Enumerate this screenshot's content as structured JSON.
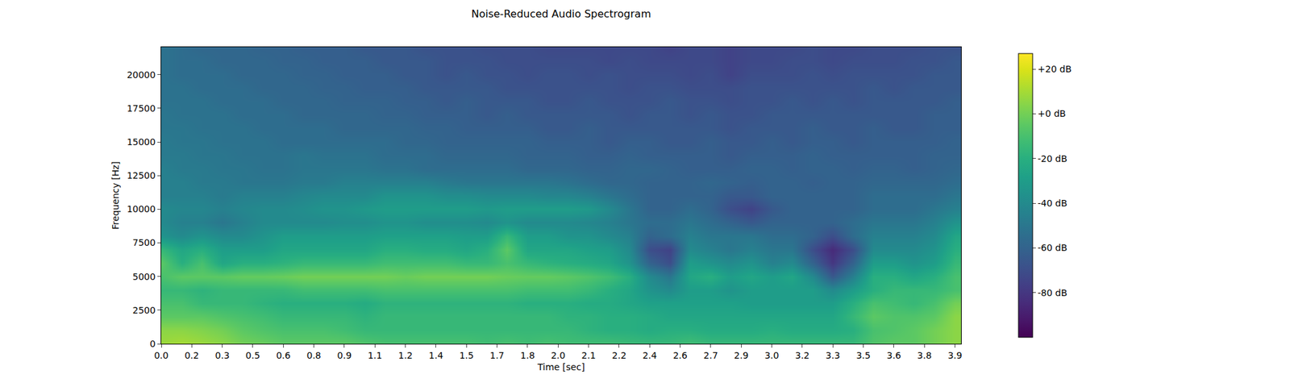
{
  "chart_data": {
    "type": "heatmap",
    "title": "Noise-Reduced Audio Spectrogram",
    "x_label": "Time [sec]",
    "y_label": "Frequency [Hz]",
    "color": "Viridis",
    "x": [
      0.0,
      0.1,
      0.2,
      0.3,
      0.4,
      0.5,
      0.6,
      0.7,
      0.8,
      0.9,
      1.0,
      1.1,
      1.2,
      1.3,
      1.4,
      1.5,
      1.6,
      1.7,
      1.8,
      1.9,
      2.0,
      2.1,
      2.2,
      2.3,
      2.4,
      2.5,
      2.6,
      2.7,
      2.8,
      2.9,
      3.0,
      3.1,
      3.2,
      3.3,
      3.4,
      3.5,
      3.6,
      3.7,
      3.8,
      3.9
    ],
    "y": [
      0,
      1000,
      2000,
      3000,
      4000,
      5000,
      6000,
      7000,
      8000,
      9000,
      10000,
      11000,
      12000,
      13000,
      14000,
      15000,
      16000,
      17000,
      18000,
      19000,
      20000,
      21000,
      22000
    ],
    "cells": [
      [
        8,
        10,
        8,
        5,
        0,
        -2,
        -5,
        -5,
        -5,
        -5,
        -8,
        -10,
        -10,
        -10,
        -10,
        -10,
        -12,
        -10,
        -12,
        -10,
        -12,
        -12,
        -12,
        -14,
        -15,
        -15,
        -12,
        -15,
        -15,
        -15,
        -15,
        -15,
        -15,
        -15,
        -15,
        -8,
        -5,
        -5,
        0,
        5
      ],
      [
        5,
        5,
        3,
        0,
        -5,
        -8,
        -10,
        -10,
        -10,
        -12,
        -15,
        -15,
        -15,
        -15,
        -15,
        -15,
        -15,
        -15,
        -15,
        -15,
        -15,
        -18,
        -20,
        -20,
        -22,
        -20,
        -20,
        -22,
        -22,
        -22,
        -20,
        -22,
        -22,
        -22,
        -20,
        -10,
        -8,
        -5,
        0,
        5
      ],
      [
        -5,
        -5,
        -5,
        -8,
        -10,
        -12,
        -15,
        -15,
        -15,
        -15,
        -18,
        -15,
        -15,
        -15,
        -15,
        -15,
        -15,
        -15,
        -15,
        -15,
        -18,
        -18,
        -20,
        -20,
        -22,
        -25,
        -25,
        -25,
        -25,
        -25,
        -25,
        -25,
        -25,
        -25,
        -15,
        -5,
        -8,
        -8,
        -5,
        5
      ],
      [
        -10,
        -10,
        -15,
        -15,
        -15,
        -18,
        -20,
        -20,
        -20,
        -20,
        -22,
        -18,
        -18,
        -18,
        -18,
        -18,
        -18,
        -18,
        -20,
        -20,
        -20,
        -22,
        -22,
        -25,
        -28,
        -28,
        -28,
        -28,
        -28,
        -30,
        -30,
        -30,
        -30,
        -30,
        -20,
        -10,
        -12,
        -15,
        -10,
        0
      ],
      [
        -15,
        -15,
        -18,
        -15,
        -15,
        -15,
        -15,
        -12,
        -12,
        -12,
        -12,
        -10,
        -10,
        -10,
        -10,
        -10,
        -10,
        -10,
        -12,
        -12,
        -12,
        -15,
        -20,
        -25,
        -35,
        -40,
        -30,
        -30,
        -35,
        -30,
        -30,
        -30,
        -30,
        -40,
        -30,
        -20,
        -15,
        -15,
        -15,
        -10
      ],
      [
        -10,
        -5,
        -5,
        -5,
        -3,
        -3,
        -2,
        0,
        0,
        0,
        0,
        0,
        -2,
        0,
        0,
        0,
        0,
        -2,
        -3,
        -3,
        -5,
        -8,
        -12,
        -20,
        -40,
        -50,
        -25,
        -20,
        -30,
        -25,
        -30,
        -25,
        -40,
        -65,
        -45,
        -20,
        -20,
        -25,
        -20,
        -10
      ],
      [
        -5,
        -20,
        -10,
        -25,
        -20,
        -20,
        -18,
        -15,
        -15,
        -15,
        -15,
        -12,
        -12,
        -12,
        -12,
        -15,
        -15,
        -10,
        -15,
        -18,
        -20,
        -22,
        -25,
        -35,
        -60,
        -70,
        -30,
        -35,
        -40,
        -35,
        -45,
        -40,
        -60,
        -80,
        -60,
        -30,
        -30,
        -35,
        -30,
        -15
      ],
      [
        -15,
        -25,
        -20,
        -30,
        -30,
        -30,
        -25,
        -25,
        -25,
        -25,
        -25,
        -20,
        -20,
        -22,
        -22,
        -25,
        -20,
        -5,
        -25,
        -25,
        -25,
        -28,
        -30,
        -40,
        -70,
        -75,
        -40,
        -45,
        -50,
        -45,
        -50,
        -50,
        -70,
        -85,
        -70,
        -40,
        -40,
        -40,
        -35,
        -20
      ],
      [
        -35,
        -40,
        -35,
        -40,
        -40,
        -35,
        -30,
        -30,
        -30,
        -30,
        -30,
        -28,
        -28,
        -28,
        -28,
        -30,
        -30,
        -15,
        -30,
        -30,
        -35,
        -35,
        -40,
        -45,
        -60,
        -55,
        -45,
        -50,
        -50,
        -50,
        -55,
        -55,
        -60,
        -70,
        -55,
        -45,
        -45,
        -45,
        -40,
        -25
      ],
      [
        -40,
        -45,
        -45,
        -50,
        -45,
        -40,
        -40,
        -40,
        -40,
        -38,
        -38,
        -35,
        -35,
        -38,
        -38,
        -38,
        -40,
        -35,
        -40,
        -40,
        -40,
        -42,
        -45,
        -50,
        -55,
        -55,
        -50,
        -55,
        -60,
        -65,
        -60,
        -60,
        -60,
        -60,
        -55,
        -50,
        -50,
        -50,
        -45,
        -35
      ],
      [
        -40,
        -42,
        -42,
        -45,
        -42,
        -40,
        -40,
        -38,
        -35,
        -35,
        -32,
        -30,
        -30,
        -30,
        -30,
        -30,
        -32,
        -30,
        -30,
        -30,
        -30,
        -32,
        -40,
        -50,
        -60,
        -60,
        -55,
        -60,
        -70,
        -75,
        -65,
        -60,
        -60,
        -60,
        -60,
        -55,
        -55,
        -55,
        -50,
        -45
      ],
      [
        -45,
        -45,
        -45,
        -48,
        -45,
        -45,
        -45,
        -42,
        -40,
        -40,
        -40,
        -35,
        -35,
        -35,
        -38,
        -38,
        -40,
        -40,
        -40,
        -42,
        -42,
        -45,
        -50,
        -55,
        -60,
        -60,
        -60,
        -60,
        -65,
        -65,
        -60,
        -60,
        -60,
        -60,
        -60,
        -55,
        -55,
        -55,
        -55,
        -50
      ],
      [
        -45,
        -45,
        -48,
        -48,
        -50,
        -50,
        -50,
        -48,
        -48,
        -45,
        -45,
        -45,
        -45,
        -45,
        -48,
        -50,
        -50,
        -50,
        -50,
        -50,
        -52,
        -55,
        -58,
        -58,
        -60,
        -60,
        -60,
        -58,
        -60,
        -62,
        -60,
        -60,
        -62,
        -60,
        -60,
        -58,
        -58,
        -58,
        -58,
        -55
      ],
      [
        -45,
        -48,
        -48,
        -50,
        -50,
        -52,
        -52,
        -50,
        -50,
        -50,
        -50,
        -52,
        -52,
        -55,
        -55,
        -55,
        -55,
        -55,
        -58,
        -58,
        -58,
        -60,
        -60,
        -58,
        -58,
        -60,
        -62,
        -62,
        -62,
        -60,
        -60,
        -62,
        -60,
        -60,
        -62,
        -60,
        -60,
        -62,
        -60,
        -58
      ],
      [
        -48,
        -48,
        -50,
        -50,
        -52,
        -52,
        -52,
        -50,
        -52,
        -52,
        -52,
        -55,
        -55,
        -55,
        -58,
        -58,
        -58,
        -58,
        -60,
        -60,
        -60,
        -62,
        -62,
        -60,
        -62,
        -62,
        -62,
        -62,
        -65,
        -62,
        -62,
        -62,
        -60,
        -62,
        -62,
        -62,
        -62,
        -62,
        -60,
        -60
      ],
      [
        -48,
        -50,
        -50,
        -52,
        -52,
        -52,
        -55,
        -55,
        -55,
        -55,
        -55,
        -55,
        -58,
        -58,
        -60,
        -60,
        -60,
        -60,
        -60,
        -62,
        -62,
        -62,
        -65,
        -62,
        -62,
        -65,
        -65,
        -62,
        -65,
        -65,
        -62,
        -65,
        -62,
        -62,
        -65,
        -62,
        -62,
        -62,
        -62,
        -60
      ],
      [
        -50,
        -50,
        -52,
        -52,
        -52,
        -55,
        -55,
        -55,
        -55,
        -58,
        -58,
        -58,
        -58,
        -60,
        -60,
        -62,
        -62,
        -62,
        -62,
        -65,
        -65,
        -62,
        -65,
        -65,
        -65,
        -65,
        -65,
        -65,
        -68,
        -65,
        -65,
        -65,
        -62,
        -65,
        -65,
        -62,
        -65,
        -65,
        -62,
        -62
      ],
      [
        -50,
        -52,
        -52,
        -52,
        -55,
        -55,
        -55,
        -58,
        -58,
        -58,
        -58,
        -60,
        -60,
        -62,
        -62,
        -62,
        -65,
        -62,
        -65,
        -65,
        -65,
        -65,
        -65,
        -68,
        -65,
        -65,
        -68,
        -65,
        -68,
        -68,
        -65,
        -65,
        -65,
        -65,
        -65,
        -65,
        -65,
        -65,
        -62,
        -62
      ],
      [
        -52,
        -52,
        -52,
        -55,
        -55,
        -55,
        -58,
        -58,
        -58,
        -60,
        -60,
        -60,
        -62,
        -62,
        -65,
        -62,
        -65,
        -65,
        -65,
        -68,
        -68,
        -65,
        -68,
        -68,
        -68,
        -65,
        -68,
        -68,
        -70,
        -68,
        -68,
        -65,
        -68,
        -65,
        -68,
        -65,
        -65,
        -65,
        -65,
        -62
      ],
      [
        -52,
        -52,
        -55,
        -55,
        -55,
        -58,
        -58,
        -58,
        -60,
        -60,
        -62,
        -62,
        -62,
        -65,
        -65,
        -65,
        -65,
        -68,
        -68,
        -68,
        -68,
        -68,
        -68,
        -70,
        -68,
        -68,
        -70,
        -70,
        -70,
        -68,
        -68,
        -68,
        -68,
        -68,
        -68,
        -65,
        -68,
        -65,
        -65,
        -65
      ],
      [
        -52,
        -55,
        -55,
        -55,
        -58,
        -58,
        -58,
        -60,
        -60,
        -62,
        -62,
        -62,
        -65,
        -65,
        -68,
        -65,
        -68,
        -68,
        -70,
        -68,
        -68,
        -70,
        -68,
        -70,
        -70,
        -70,
        -72,
        -70,
        -75,
        -70,
        -70,
        -70,
        -68,
        -70,
        -68,
        -68,
        -68,
        -68,
        -65,
        -65
      ],
      [
        -52,
        -55,
        -55,
        -58,
        -58,
        -58,
        -60,
        -60,
        -62,
        -62,
        -62,
        -65,
        -65,
        -65,
        -68,
        -68,
        -68,
        -70,
        -70,
        -70,
        -70,
        -70,
        -72,
        -70,
        -72,
        -72,
        -72,
        -72,
        -75,
        -72,
        -72,
        -70,
        -70,
        -72,
        -70,
        -70,
        -70,
        -68,
        -68,
        -65
      ],
      [
        -52,
        -55,
        -58,
        -58,
        -58,
        -60,
        -60,
        -62,
        -62,
        -62,
        -65,
        -65,
        -65,
        -68,
        -68,
        -68,
        -70,
        -70,
        -70,
        -72,
        -72,
        -72,
        -72,
        -72,
        -72,
        -75,
        -72,
        -72,
        -75,
        -72,
        -72,
        -72,
        -70,
        -72,
        -72,
        -70,
        -70,
        -70,
        -68,
        -68
      ]
    ],
    "xlim": [
      0,
      3.93
    ],
    "xticks": [
      {
        "value": 0,
        "label": "0.0"
      },
      {
        "value": 0.15,
        "label": "0.2"
      },
      {
        "value": 0.3,
        "label": "0.3"
      },
      {
        "value": 0.45,
        "label": "0.5"
      },
      {
        "value": 0.6,
        "label": "0.6"
      },
      {
        "value": 0.75,
        "label": "0.8"
      },
      {
        "value": 0.9,
        "label": "0.9"
      },
      {
        "value": 1.05,
        "label": "1.1"
      },
      {
        "value": 1.2,
        "label": "1.2"
      },
      {
        "value": 1.35,
        "label": "1.4"
      },
      {
        "value": 1.5,
        "label": "1.5"
      },
      {
        "value": 1.65,
        "label": "1.7"
      },
      {
        "value": 1.8,
        "label": "1.8"
      },
      {
        "value": 1.95,
        "label": "2.0"
      },
      {
        "value": 2.1,
        "label": "2.1"
      },
      {
        "value": 2.25,
        "label": "2.2"
      },
      {
        "value": 2.4,
        "label": "2.4"
      },
      {
        "value": 2.55,
        "label": "2.6"
      },
      {
        "value": 2.7,
        "label": "2.7"
      },
      {
        "value": 2.85,
        "label": "2.9"
      },
      {
        "value": 3.0,
        "label": "3.0"
      },
      {
        "value": 3.15,
        "label": "3.2"
      },
      {
        "value": 3.3,
        "label": "3.3"
      },
      {
        "value": 3.45,
        "label": "3.5"
      },
      {
        "value": 3.6,
        "label": "3.6"
      },
      {
        "value": 3.75,
        "label": "3.8"
      },
      {
        "value": 3.9,
        "label": "3.9"
      }
    ],
    "ylim": [
      0,
      22050
    ],
    "yticks": [
      0,
      2500,
      5000,
      7500,
      10000,
      12500,
      15000,
      17500,
      20000
    ],
    "colorbar": {
      "range": [
        -100,
        27
      ],
      "ticks": [
        {
          "value": 20,
          "label": "+20 dB"
        },
        {
          "value": 0,
          "label": "+0 dB"
        },
        {
          "value": -20,
          "label": "-20 dB"
        },
        {
          "value": -40,
          "label": "-40 dB"
        },
        {
          "value": -60,
          "label": "-60 dB"
        },
        {
          "value": -80,
          "label": "-80 dB"
        }
      ]
    },
    "grid": false
  }
}
